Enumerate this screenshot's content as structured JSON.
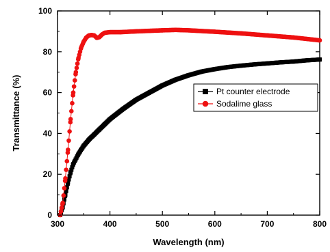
{
  "chart_data": {
    "type": "scatter",
    "title": "",
    "xlabel": "Wavelength (nm)",
    "ylabel": "Transmittance (%)",
    "xlim": [
      300,
      800
    ],
    "ylim": [
      0,
      100
    ],
    "xticks": [
      300,
      400,
      500,
      600,
      700,
      800
    ],
    "yticks": [
      0,
      20,
      40,
      60,
      80,
      100
    ],
    "grid": false,
    "legend_position": "right",
    "colors": {
      "pt": "#000000",
      "soda": "#ee1111",
      "axis": "#000000"
    },
    "series": [
      {
        "name": "Pt counter electrode",
        "marker": "square",
        "x": [
          305,
          310,
          315,
          320,
          325,
          330,
          340,
          350,
          360,
          370,
          380,
          390,
          400,
          425,
          450,
          475,
          500,
          525,
          550,
          575,
          600,
          625,
          650,
          675,
          700,
          725,
          750,
          775,
          800
        ],
        "y": [
          0,
          4,
          10,
          16,
          21,
          25,
          30,
          34,
          37,
          39.5,
          42,
          44.5,
          47,
          52,
          56.5,
          60,
          63.5,
          66.3,
          68.5,
          70.3,
          71.5,
          72.5,
          73.2,
          73.8,
          74.3,
          74.8,
          75.2,
          75.8,
          76.2
        ]
      },
      {
        "name": "Sodalime glass",
        "marker": "circle",
        "x": [
          305,
          310,
          315,
          320,
          325,
          330,
          335,
          340,
          345,
          350,
          355,
          360,
          365,
          370,
          375,
          380,
          385,
          390,
          400,
          420,
          450,
          500,
          525,
          550,
          600,
          650,
          700,
          750,
          800
        ],
        "y": [
          0,
          6,
          18,
          32,
          47,
          60,
          70,
          77,
          82,
          85,
          87,
          88,
          88.2,
          88,
          86.8,
          87.2,
          88.5,
          89.3,
          89.6,
          89.6,
          90,
          90.5,
          90.7,
          90.5,
          89.8,
          89,
          88,
          87,
          85.6
        ]
      }
    ]
  }
}
